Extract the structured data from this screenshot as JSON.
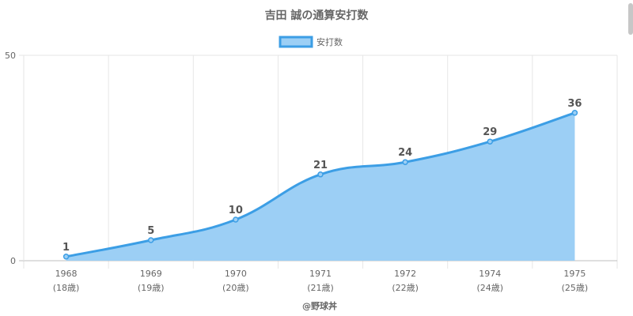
{
  "chart_data": {
    "type": "area",
    "title": "吉田 誠の通算安打数",
    "legend": {
      "label": "安打数",
      "position": "top"
    },
    "categories": [
      "1968",
      "1969",
      "1970",
      "1971",
      "1972",
      "1974",
      "1975"
    ],
    "category_sublabels": [
      "(18歳)",
      "(19歳)",
      "(20歳)",
      "(21歳)",
      "(22歳)",
      "(24歳)",
      "(25歳)"
    ],
    "series": [
      {
        "name": "安打数",
        "values": [
          1,
          5,
          10,
          21,
          24,
          29,
          36
        ]
      }
    ],
    "ylim": [
      0,
      50
    ],
    "yticks": [
      "0",
      "50"
    ],
    "grid": true,
    "line_color": "#3c9ee5",
    "fill_color": "#9ccff5"
  },
  "credit": "@野球丼"
}
